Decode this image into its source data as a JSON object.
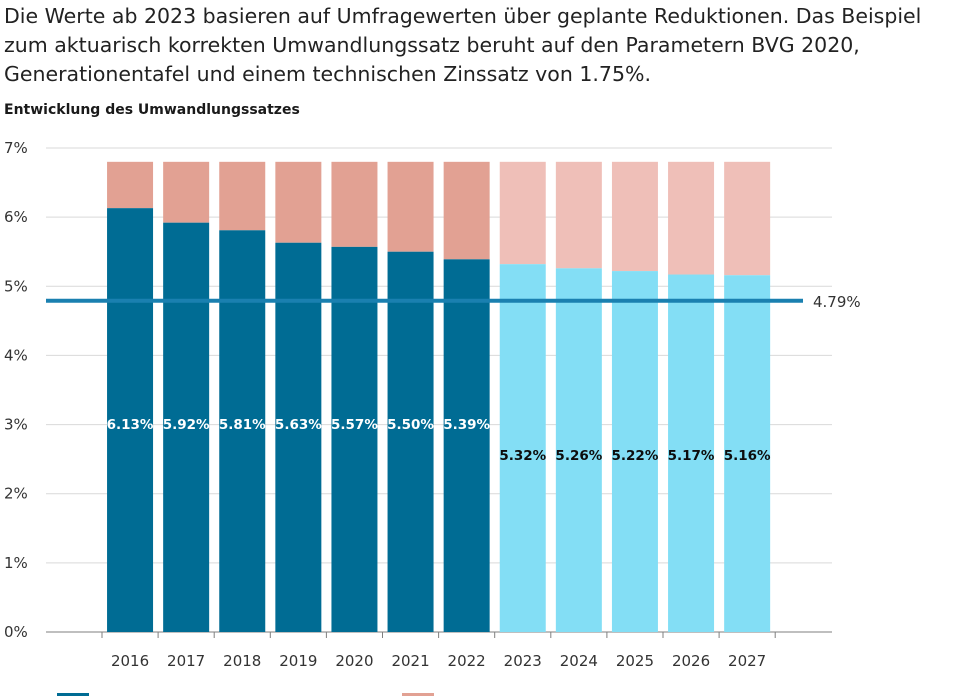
{
  "intro": {
    "lines": [
      "Die Werte ab 2023 basieren auf Umfragewerten über geplante Reduktionen. Das Beispiel",
      "zum aktuarisch korrekten Umwandlungssatz beruht auf den Parametern BVG 2020,",
      "Generationentafel und einem technischen Zinssatz von 1.75%."
    ]
  },
  "colors": {
    "actual_bar": "#006c94",
    "forecast_bar": "#83def5",
    "diff_actual": "#e2a193",
    "diff_forecast": "#efbfb8",
    "reference_line": "#1a80b0",
    "grid": "#d9d9d9",
    "axis": "#7f7f7f"
  },
  "chart_data": {
    "type": "bar",
    "stacked": true,
    "title": "Entwicklung des Umwandlungssatzes",
    "categories": [
      "2016",
      "2017",
      "2018",
      "2019",
      "2020",
      "2021",
      "2022",
      "2023",
      "2024",
      "2025",
      "2026",
      "2027"
    ],
    "values": [
      6.13,
      5.92,
      5.81,
      5.63,
      5.57,
      5.5,
      5.39,
      5.32,
      5.26,
      5.22,
      5.17,
      5.16
    ],
    "value_labels": [
      "6.13%",
      "5.92%",
      "5.81%",
      "5.63%",
      "5.57%",
      "5.50%",
      "5.39%",
      "5.32%",
      "5.26%",
      "5.22%",
      "5.17%",
      "5.16%"
    ],
    "stack_top": 6.8,
    "forecast_from": "2023",
    "reference_line": {
      "value": 4.79,
      "label": "4.79%"
    },
    "y_ticks": [
      0,
      1,
      2,
      3,
      4,
      5,
      6,
      7
    ],
    "y_tick_labels": [
      "0%",
      "1%",
      "2%",
      "3%",
      "4%",
      "5%",
      "6%",
      "7%"
    ],
    "ylim": [
      0,
      7
    ],
    "grid": true,
    "legend_position": "bottom"
  }
}
